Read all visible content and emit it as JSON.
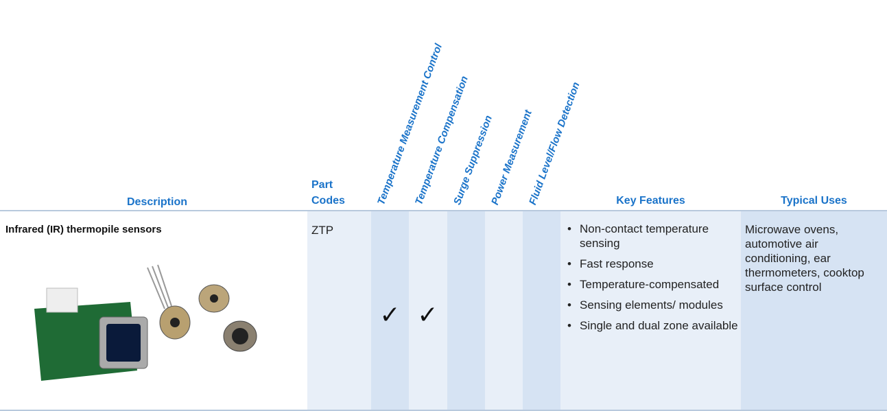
{
  "table": {
    "headers": {
      "description": "Description",
      "part_codes": "Part Codes",
      "applications": [
        "Temperature Measurement Control",
        "Temperature Compensation",
        "Surge Suppression",
        "Power Measurement",
        "Fluid Level/Flow Detection"
      ],
      "key_features": "Key Features",
      "typical_uses": "Typical Uses"
    },
    "rows": [
      {
        "description": "Infrared (IR) thermopile sensors",
        "part_codes": "ZTP",
        "checks": [
          "✓",
          "✓",
          null,
          null,
          null
        ],
        "key_features": [
          "Non-contact temperature sensing",
          "Fast response",
          "Temperature-compensated",
          "Sensing elements/ modules",
          "Single and dual zone available"
        ],
        "typical_uses": "Microwave ovens, automotive air conditioning, ear thermometers, cooktop surface control"
      }
    ]
  }
}
